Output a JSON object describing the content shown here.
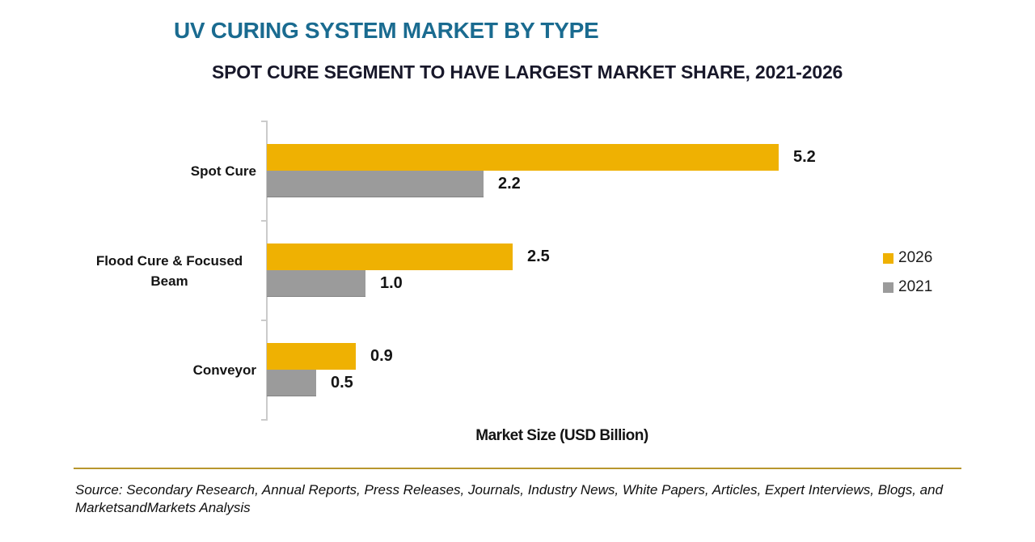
{
  "header": {
    "title": "UV CURING SYSTEM MARKET BY TYPE",
    "subtitle": "SPOT CURE SEGMENT TO HAVE LARGEST MARKET SHARE, 2021-2026"
  },
  "chart_data": {
    "type": "bar",
    "orientation": "horizontal",
    "title": "UV CURING SYSTEM MARKET BY TYPE",
    "subtitle": "SPOT CURE SEGMENT TO HAVE LARGEST MARKET SHARE, 2021-2026",
    "categories": [
      "Spot Cure",
      "Flood Cure & Focused Beam",
      "Conveyor"
    ],
    "series": [
      {
        "name": "2026",
        "color": "#EFB102",
        "values": [
          5.2,
          2.5,
          0.9
        ]
      },
      {
        "name": "2021",
        "color": "#9B9B9B",
        "values": [
          2.2,
          1.0,
          0.5
        ]
      }
    ],
    "xlabel": "Market Size (USD Billion)",
    "ylabel": "",
    "xlim": [
      0,
      6
    ],
    "grid": false,
    "legend_position": "right",
    "value_labels": true
  },
  "footer": {
    "source": "Source: Secondary Research, Annual Reports, Press Releases, Journals, Industry News, White Papers, Articles, Expert Interviews, Blogs, and MarketsandMarkets Analysis"
  },
  "colors": {
    "title": "#1A6B90",
    "subtitle": "#18182A",
    "bar_2026": "#EFB102",
    "bar_2021": "#9B9B9B",
    "axis": "#CBCBCB",
    "rule": "#B8962E"
  }
}
